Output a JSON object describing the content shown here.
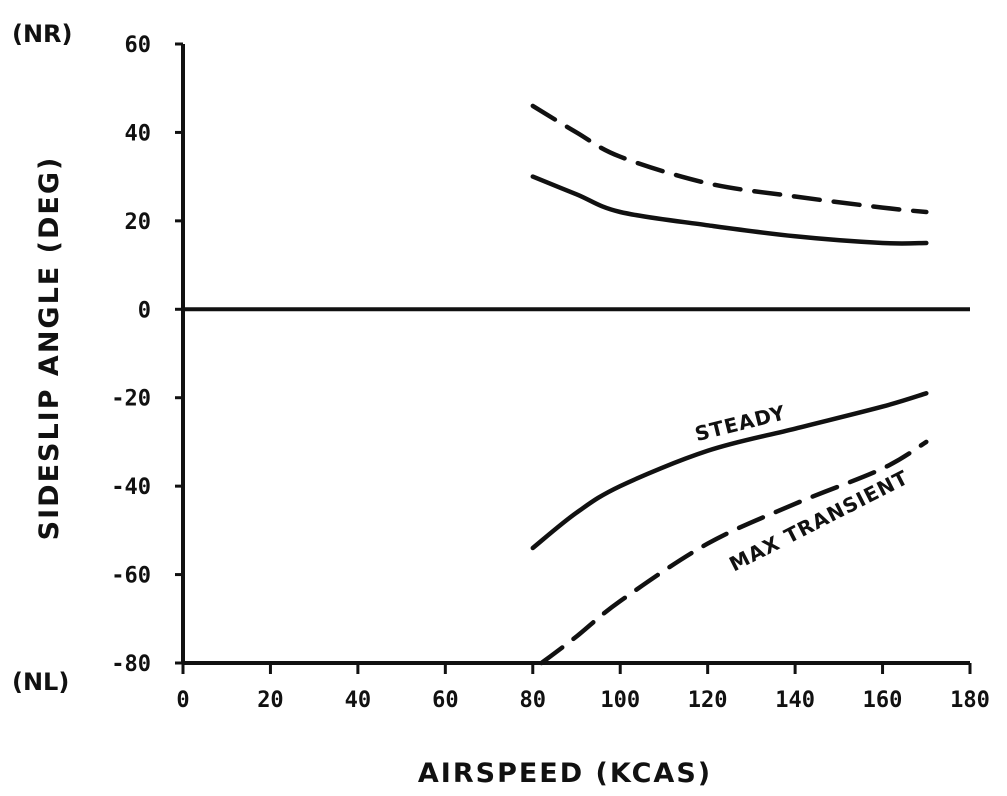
{
  "chart_data": {
    "type": "line",
    "xlabel": "AIRSPEED (KCAS)",
    "ylabel": "SIDESLIP ANGLE (DEG)",
    "xlim": [
      0,
      180
    ],
    "ylim": [
      -80,
      60
    ],
    "x_ticks": [
      "0",
      "20",
      "40",
      "60",
      "80",
      "100",
      "120",
      "140",
      "160",
      "180"
    ],
    "y_ticks": [
      "60",
      "40",
      "20",
      "0",
      "-20",
      "-40",
      "-60",
      "-80"
    ],
    "y_top_label": "(NR)",
    "y_bottom_label": "(NL)",
    "grid": false,
    "series": [
      {
        "group": "nr",
        "style": "solid",
        "x": [
          80,
          90,
          100,
          120,
          140,
          160,
          170
        ],
        "y": [
          30,
          26,
          22,
          19,
          16.5,
          15,
          15
        ]
      },
      {
        "group": "nr",
        "style": "dashed",
        "x": [
          80,
          90,
          100,
          120,
          140,
          160,
          170
        ],
        "y": [
          46,
          40,
          34.5,
          28.5,
          25.5,
          23,
          22
        ]
      },
      {
        "name": "STEADY",
        "group": "nl",
        "style": "solid",
        "x": [
          80,
          90,
          100,
          120,
          140,
          160,
          170
        ],
        "y": [
          -54,
          -46,
          -40,
          -32,
          -27,
          -22,
          -19
        ]
      },
      {
        "name": "MAX TRANSIENT",
        "group": "nl",
        "style": "dashed",
        "x": [
          82,
          90,
          100,
          120,
          140,
          160,
          170
        ],
        "y": [
          -80,
          -74,
          -66,
          -53,
          -44,
          -36,
          -30
        ]
      }
    ]
  }
}
